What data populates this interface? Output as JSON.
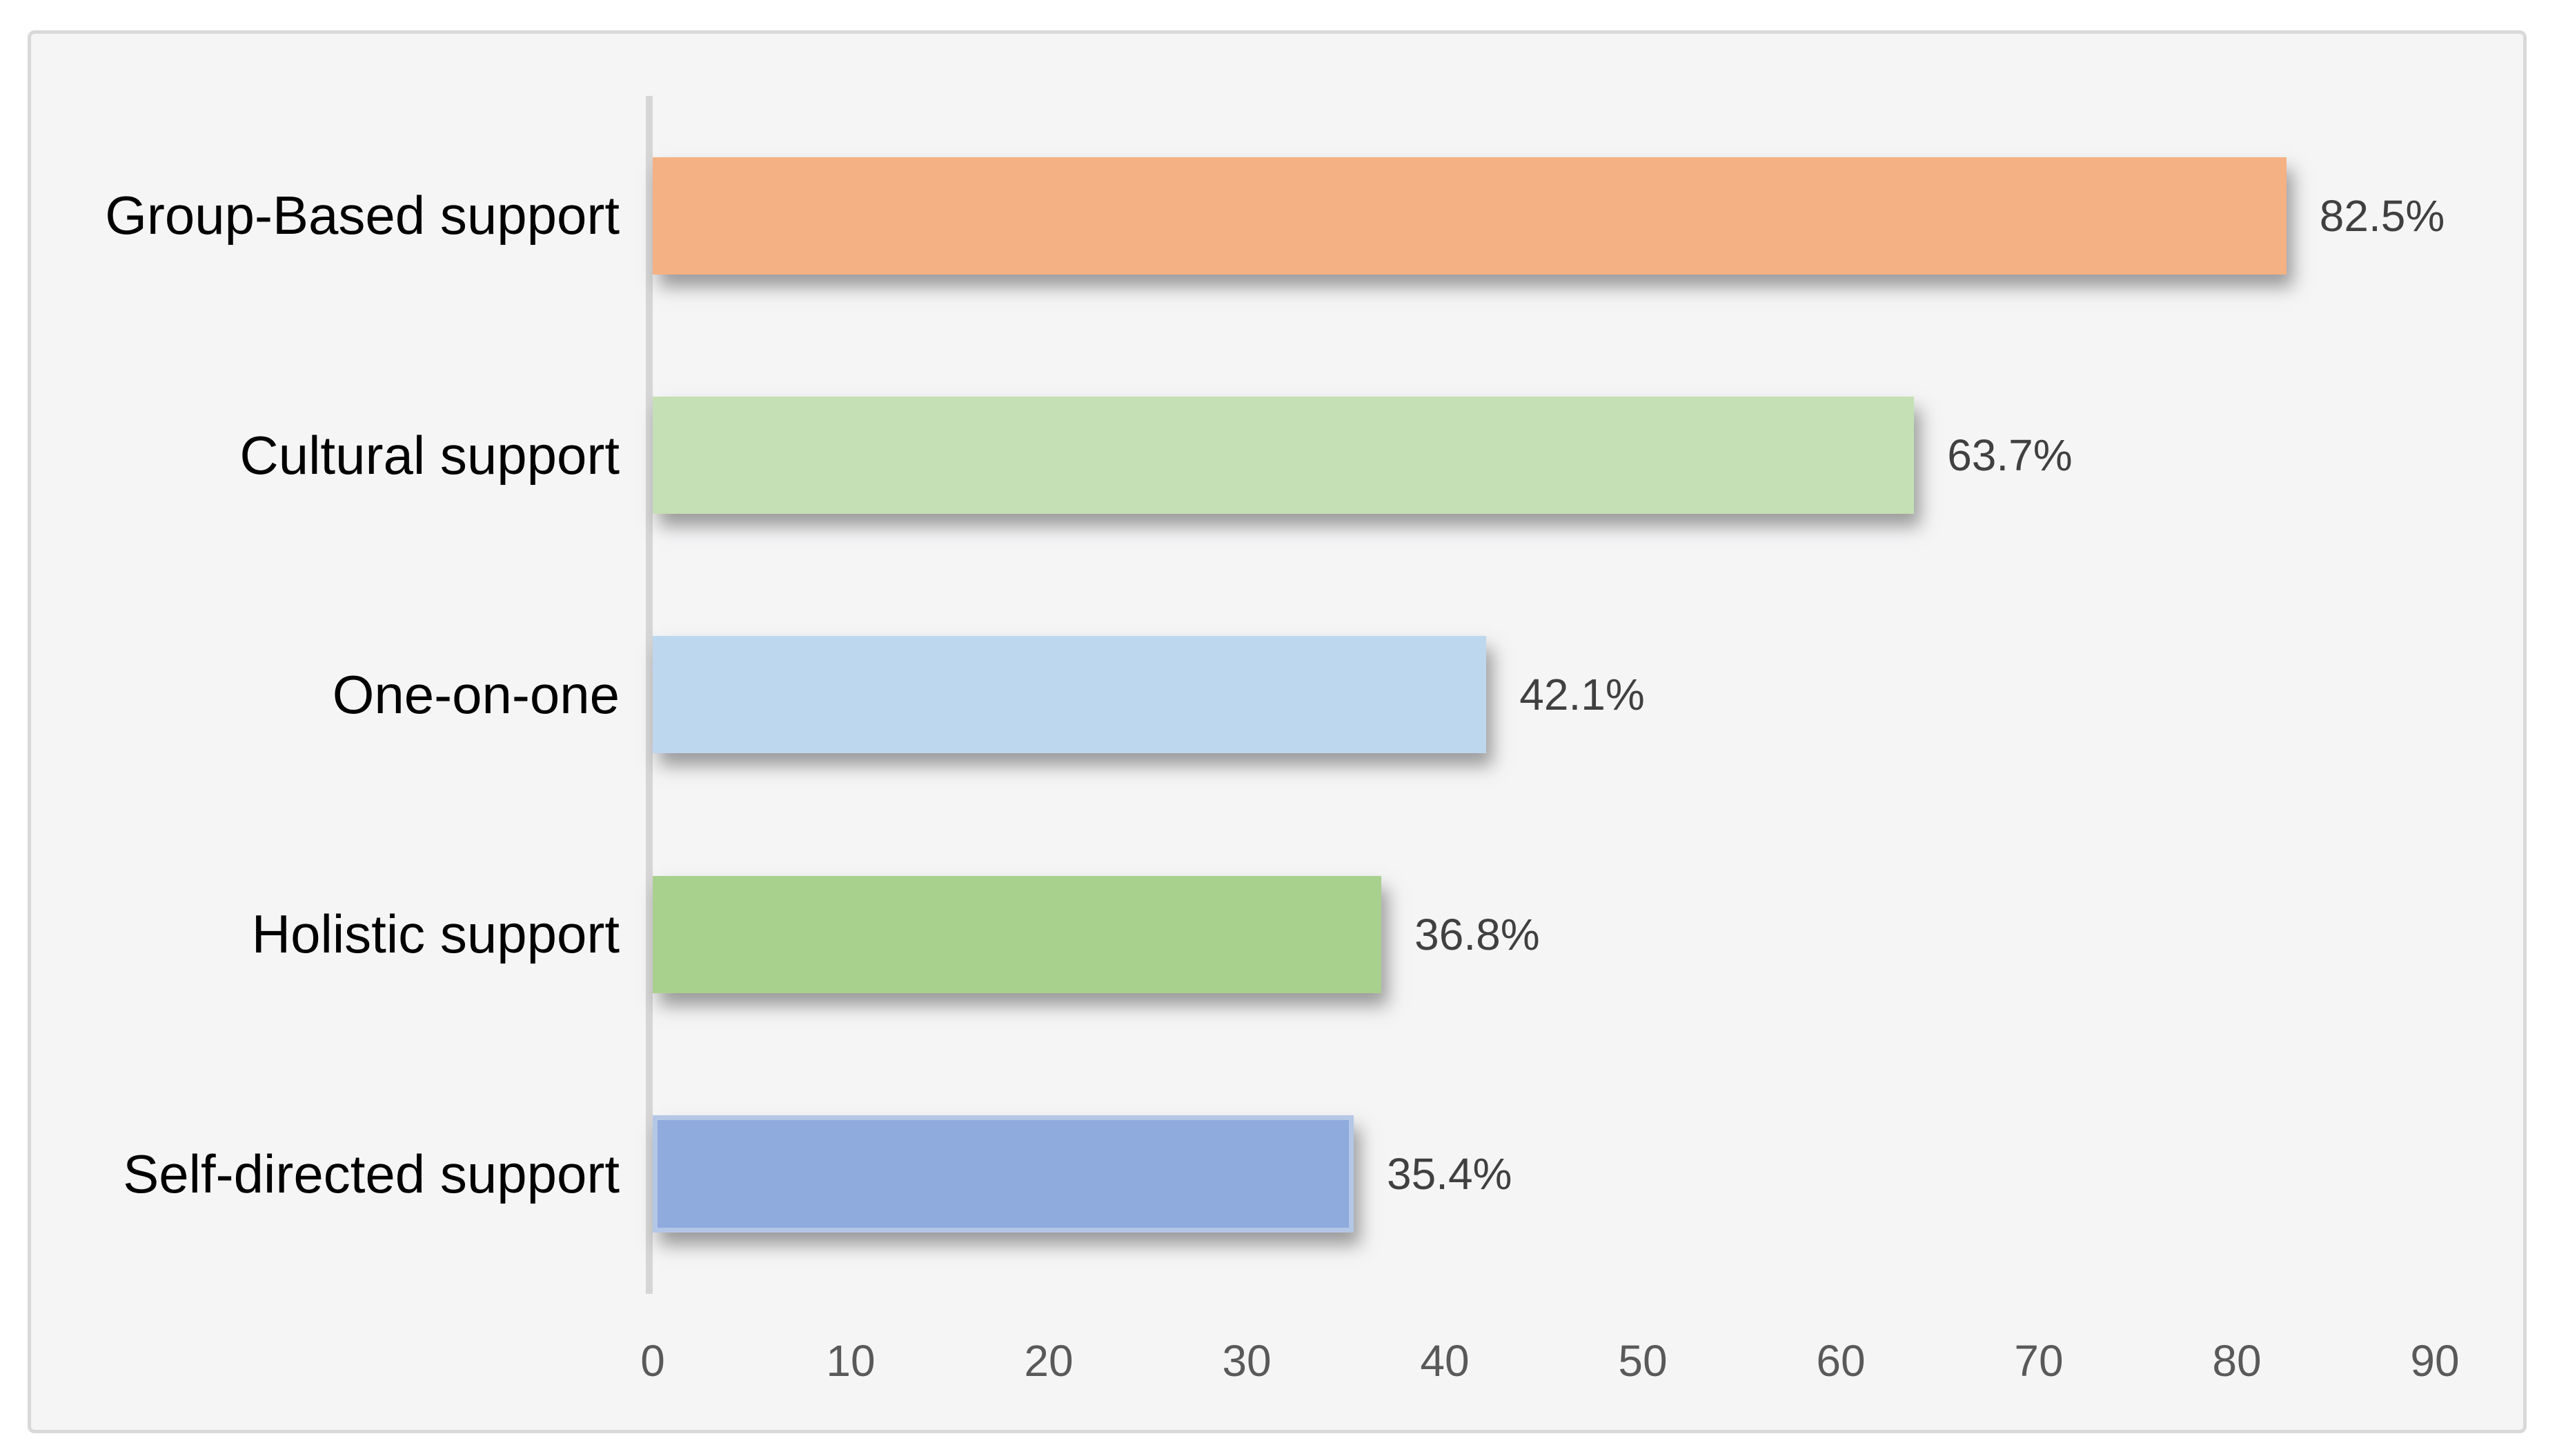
{
  "chart_data": {
    "type": "bar",
    "orientation": "horizontal",
    "title": "",
    "xlabel": "",
    "ylabel": "",
    "categories": [
      "Group-Based support",
      "Cultural support",
      "One-on-one",
      "Holistic support",
      "Self-directed support"
    ],
    "values": [
      82.5,
      63.7,
      42.1,
      36.8,
      35.4
    ],
    "data_labels": [
      "82.5%",
      "63.7%",
      "42.1%",
      "36.8%",
      "35.4%"
    ],
    "xlim": [
      0,
      90
    ],
    "x_ticks": [
      "0",
      "10",
      "20",
      "30",
      "40",
      "50",
      "60",
      "70",
      "80",
      "90"
    ],
    "grid": false,
    "legend": false,
    "bar_colors": [
      "#F4B183",
      "#C5E0B4",
      "#BDD7EE",
      "#A9D18E",
      "#8FAADC"
    ],
    "bar_border_colors": [
      "none",
      "none",
      "none",
      "none",
      "#B4C7E7"
    ],
    "theme": {
      "page_background": "#FFFFFF",
      "chart_background": "#F5F5F6",
      "chart_border": "#D9D9D9",
      "axis_line": "#D6D6D6",
      "tick_label_color": "#595959",
      "data_label_color": "#404040",
      "category_label_color": "#000000"
    }
  }
}
